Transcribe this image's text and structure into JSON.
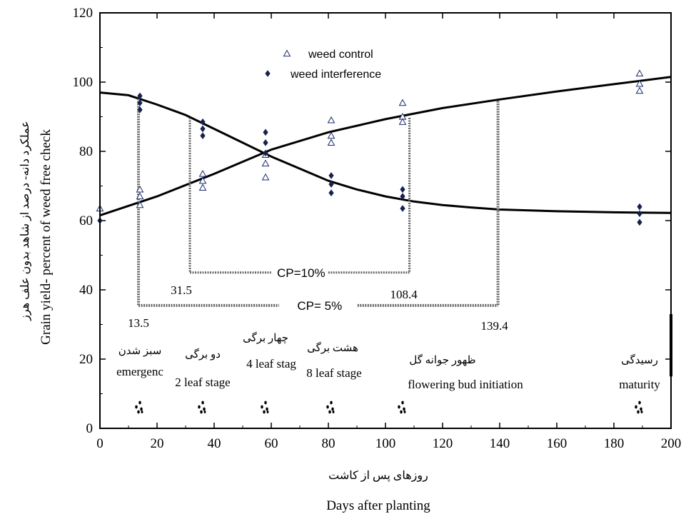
{
  "chart_data": {
    "type": "scatter",
    "xlabel_fa": "روزهای پس از کاشت",
    "xlabel": "Days after planting",
    "ylabel_fa": "عملکرد دانه- درصد از شاهد بدون علف هرز",
    "ylabel": "Grain yield- percent of weed free check",
    "xlim": [
      0,
      200
    ],
    "ylim": [
      0,
      120
    ],
    "x_ticks": [
      "0",
      "20",
      "40",
      "60",
      "80",
      "100",
      "120",
      "140",
      "160",
      "180",
      "200"
    ],
    "y_ticks": [
      "0",
      "20",
      "40",
      "60",
      "80",
      "100",
      "120"
    ],
    "legend": {
      "weed_control": "weed control",
      "weed_interference": "weed interference"
    },
    "series": [
      {
        "name": "weed control",
        "marker": "triangle-open",
        "points": [
          [
            0,
            63.5
          ],
          [
            14,
            69
          ],
          [
            14,
            67
          ],
          [
            14,
            64.5
          ],
          [
            36,
            73.5
          ],
          [
            36,
            71.5
          ],
          [
            36,
            69.5
          ],
          [
            58,
            79
          ],
          [
            58,
            76.5
          ],
          [
            58,
            72.5
          ],
          [
            81,
            89
          ],
          [
            81,
            84.5
          ],
          [
            81,
            82.5
          ],
          [
            106,
            94
          ],
          [
            106,
            90
          ],
          [
            106,
            88.5
          ],
          [
            189,
            102.5
          ],
          [
            189,
            99.5
          ],
          [
            189,
            97.5
          ]
        ]
      },
      {
        "name": "weed interference",
        "marker": "diamond-filled",
        "points": [
          [
            0,
            60
          ],
          [
            14,
            96
          ],
          [
            14,
            94
          ],
          [
            14,
            92
          ],
          [
            36,
            88.5
          ],
          [
            36,
            86.5
          ],
          [
            36,
            84.5
          ],
          [
            58,
            85.5
          ],
          [
            58,
            82.5
          ],
          [
            58,
            79.5
          ],
          [
            81,
            73
          ],
          [
            81,
            70.5
          ],
          [
            81,
            68
          ],
          [
            106,
            69
          ],
          [
            106,
            67
          ],
          [
            106,
            63.5
          ],
          [
            189,
            64
          ],
          [
            189,
            62
          ],
          [
            189,
            59.5
          ]
        ]
      }
    ],
    "curves": {
      "weed_control": [
        [
          0,
          61.5
        ],
        [
          20,
          67
        ],
        [
          40,
          73.5
        ],
        [
          60,
          80.5
        ],
        [
          80,
          85.5
        ],
        [
          100,
          89.3
        ],
        [
          120,
          92.5
        ],
        [
          140,
          95
        ],
        [
          160,
          97.3
        ],
        [
          180,
          99.4
        ],
        [
          200,
          101.5
        ]
      ],
      "weed_interference": [
        [
          0,
          97
        ],
        [
          10,
          96.2
        ],
        [
          20,
          93.5
        ],
        [
          30,
          90.5
        ],
        [
          40,
          86.5
        ],
        [
          50,
          82.5
        ],
        [
          60,
          78.5
        ],
        [
          70,
          75
        ],
        [
          80,
          71.5
        ],
        [
          90,
          69
        ],
        [
          100,
          67
        ],
        [
          110,
          65.5
        ],
        [
          120,
          64.5
        ],
        [
          130,
          63.8
        ],
        [
          140,
          63.2
        ],
        [
          160,
          62.7
        ],
        [
          180,
          62.4
        ],
        [
          200,
          62.2
        ]
      ]
    },
    "critical_periods": [
      {
        "label": "CP=10%",
        "start": 31.5,
        "end": 108.4,
        "start_label": "31.5",
        "end_label": "108.4",
        "y_level": 45,
        "start_top": 89.7,
        "end_top": 89.7
      },
      {
        "label": "CP= 5%",
        "start": 13.5,
        "end": 139.4,
        "start_label": "13.5",
        "end_label": "139.4",
        "y_level": 35.5,
        "start_top": 95.2,
        "end_top": 94.5
      }
    ],
    "stages": [
      {
        "fa": "سبز شدن",
        "en": "emergenc",
        "x": 14
      },
      {
        "fa": "دو برگی",
        "en": "2 leaf stage",
        "x": 36
      },
      {
        "fa": "چهار برگی",
        "en": "4 leaf stag",
        "x": 58
      },
      {
        "fa": "هشت برگی",
        "en": "8 leaf stage",
        "x": 81
      },
      {
        "fa": "ظهور جوانه گل",
        "en": "flowering bud initiation",
        "x": 106
      },
      {
        "fa": "رسیدگی",
        "en": "maturity",
        "x": 189
      }
    ]
  }
}
